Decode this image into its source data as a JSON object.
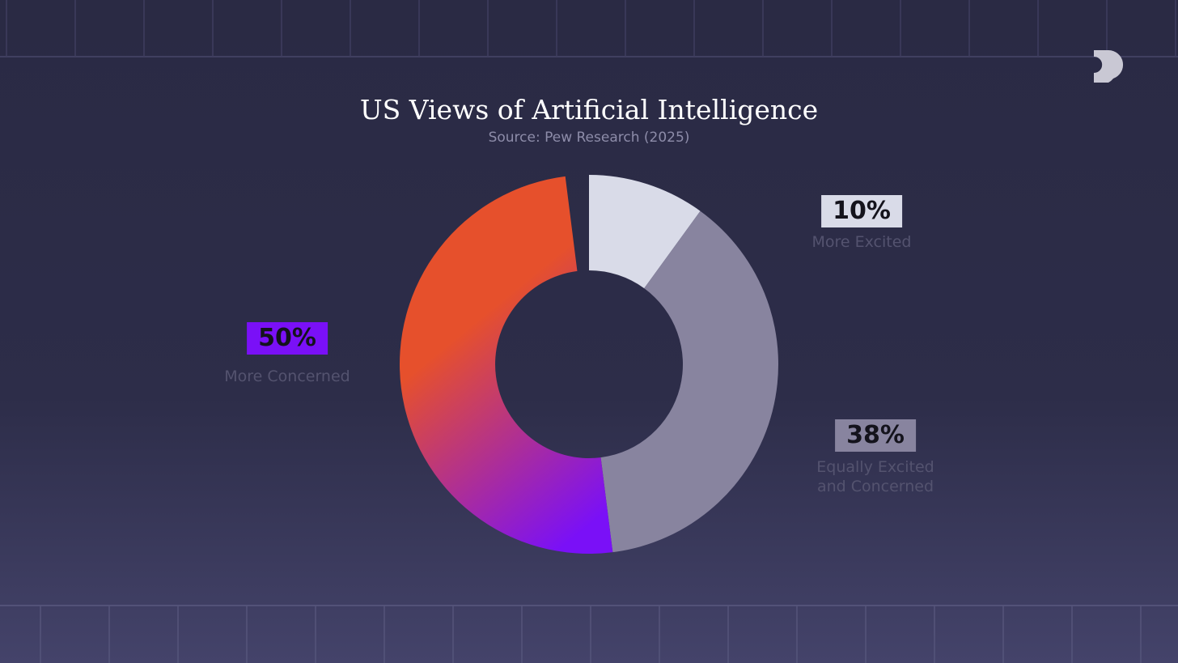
{
  "chart_data": {
    "type": "donut",
    "title": "US Views of Artificial Intelligence",
    "subtitle": "Source:  Pew Research (2025)",
    "categories": [
      "More Excited",
      "Equally Excited and Concerned",
      "More Concerned"
    ],
    "values": [
      10,
      38,
      50
    ],
    "value_labels": [
      "10%",
      "38%",
      "50%"
    ],
    "colors": [
      "#d9dbe8",
      "#88849f",
      [
        "#e6502c",
        "#7a10f7"
      ]
    ]
  }
}
